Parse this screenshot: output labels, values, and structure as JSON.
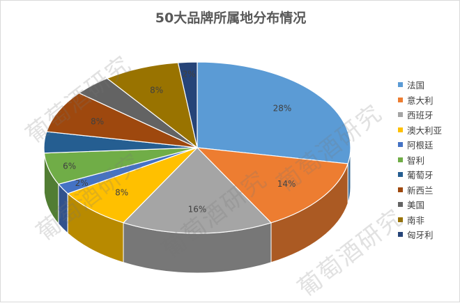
{
  "chart_data": {
    "type": "pie",
    "title": "50大品牌所属地分布情况",
    "slices": [
      {
        "label": "法国",
        "value": 28,
        "color": "#5b9bd5"
      },
      {
        "label": "意大利",
        "value": 14,
        "color": "#ed7d31"
      },
      {
        "label": "西班牙",
        "value": 16,
        "color": "#a5a5a5"
      },
      {
        "label": "澳大利亚",
        "value": 8,
        "color": "#ffc000"
      },
      {
        "label": "阿根廷",
        "value": 2,
        "color": "#4472c4"
      },
      {
        "label": "智利",
        "value": 6,
        "color": "#70ad47"
      },
      {
        "label": "葡萄牙",
        "value": 4,
        "color": "#255e91"
      },
      {
        "label": "新西兰",
        "value": 8,
        "color": "#9e480e"
      },
      {
        "label": "美国",
        "value": 4,
        "color": "#636363"
      },
      {
        "label": "南非",
        "value": 8,
        "color": "#997300"
      },
      {
        "label": "匈牙利",
        "value": 2,
        "color": "#264478"
      }
    ],
    "data_labels": {
      "法国": "28%",
      "意大利": "14%",
      "西班牙": "16%",
      "澳大利亚": "8%",
      "阿根廷": "2%",
      "智利": "6%",
      "新西兰": "8%",
      "南非": "8%",
      "匈牙利": "2%"
    },
    "legend_position": "right",
    "style": "3d"
  },
  "watermark": {
    "text": "葡萄酒研究"
  }
}
